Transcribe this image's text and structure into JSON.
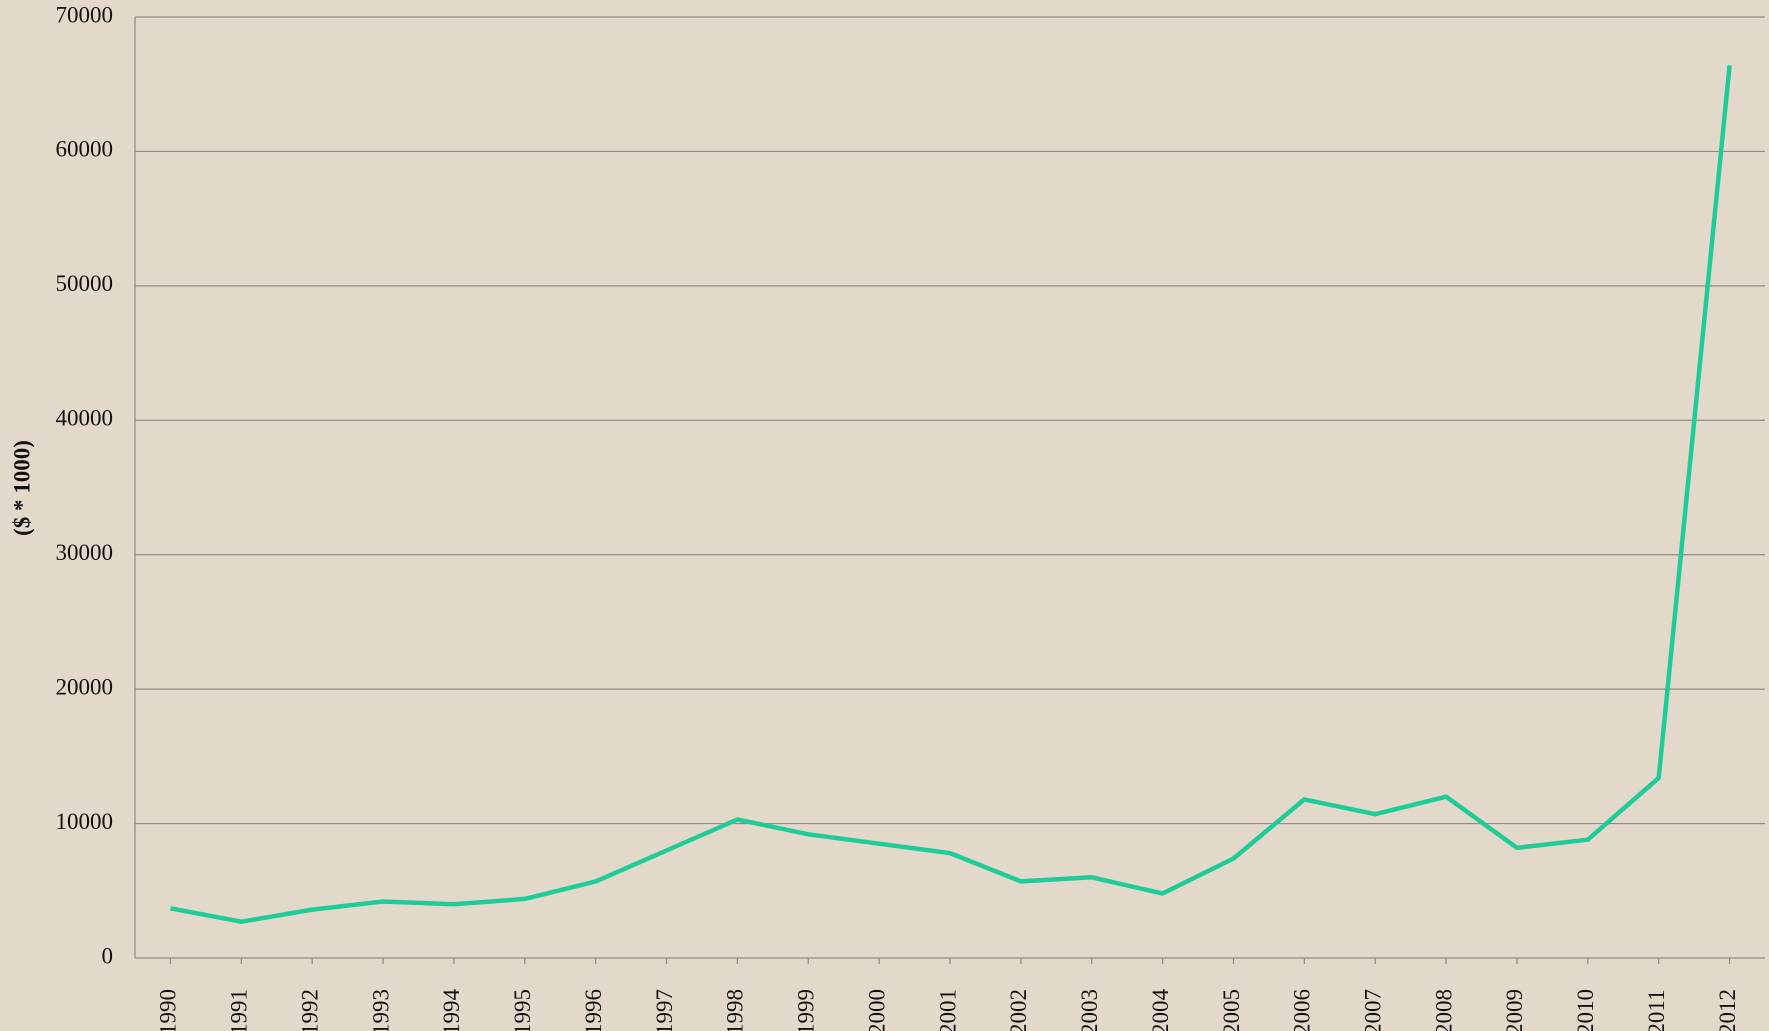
{
  "chart_data": {
    "type": "line",
    "y_label": "($ * 1000)",
    "categories": [
      "1990",
      "1991",
      "1992",
      "1993",
      "1994",
      "1995",
      "1996",
      "1997",
      "1998",
      "1999",
      "2000",
      "2001",
      "2002",
      "2003",
      "2004",
      "2005",
      "2006",
      "2007",
      "2008",
      "2009",
      "2010",
      "2011",
      "2012"
    ],
    "series": [
      {
        "color": "#1fcc99",
        "values": [
          3700,
          2700,
          3600,
          4200,
          4000,
          4400,
          5700,
          8000,
          10300,
          9200,
          8500,
          7800,
          5700,
          6000,
          4800,
          7400,
          11800,
          10700,
          12000,
          8200,
          8800,
          13400,
          66400
        ]
      }
    ],
    "ylim": [
      0,
      70000
    ],
    "yticks": [
      0,
      10000,
      20000,
      30000,
      40000,
      50000,
      60000,
      70000
    ],
    "grid": true
  }
}
